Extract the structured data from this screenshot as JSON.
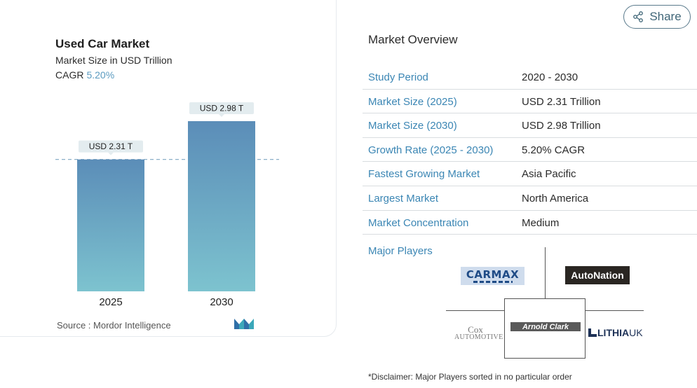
{
  "chart": {
    "title": "Used Car Market",
    "subtitle": "Market Size in USD Trillion",
    "cagr_label": "CAGR",
    "cagr_value": "5.20%",
    "source": "Source :  Mordor Intelligence"
  },
  "chart_data": {
    "type": "bar",
    "categories": [
      "2025",
      "2030"
    ],
    "values": [
      2.31,
      2.98
    ],
    "data_labels": [
      "USD 2.31 T",
      "USD 2.98 T"
    ],
    "title": "Used Car Market",
    "subtitle": "Market Size in USD Trillion",
    "xlabel": "",
    "ylabel": "",
    "ylim": [
      0,
      2.98
    ],
    "reference_line": 2.31,
    "grid": false,
    "colors": {
      "bar_top": "#5b8db8",
      "bar_bottom": "#7dc3cf",
      "label_bg": "#e3ecef",
      "ref_line": "#8bb0c8"
    }
  },
  "share": {
    "label": "Share",
    "icon": "share-icon"
  },
  "overview": {
    "title": "Market Overview",
    "rows": [
      {
        "label": "Study Period",
        "value": "2020 - 2030"
      },
      {
        "label": "Market Size (2025)",
        "value": "USD 2.31 Trillion"
      },
      {
        "label": "Market Size (2030)",
        "value": "USD 2.98 Trillion"
      },
      {
        "label": "Growth Rate (2025 - 2030)",
        "value": "5.20% CAGR"
      },
      {
        "label": "Fastest Growing Market",
        "value": "Asia Pacific"
      },
      {
        "label": "Largest Market",
        "value": "North America"
      },
      {
        "label": "Market Concentration",
        "value": "Medium"
      }
    ]
  },
  "major_players": {
    "label": "Major Players",
    "logos": {
      "carmax": "CARMAX",
      "autonation": "AutoNation",
      "cox_line1": "Cox",
      "cox_line2": "AUTOMOTIVE",
      "arnold_clark": "Arnold Clark",
      "lithia": "LITHIA",
      "lithia_suffix": "UK"
    }
  },
  "disclaimer": "*Disclaimer: Major Players sorted in no particular order",
  "colors": {
    "accent": "#3b86b4",
    "cagr": "#5b9bc0"
  }
}
